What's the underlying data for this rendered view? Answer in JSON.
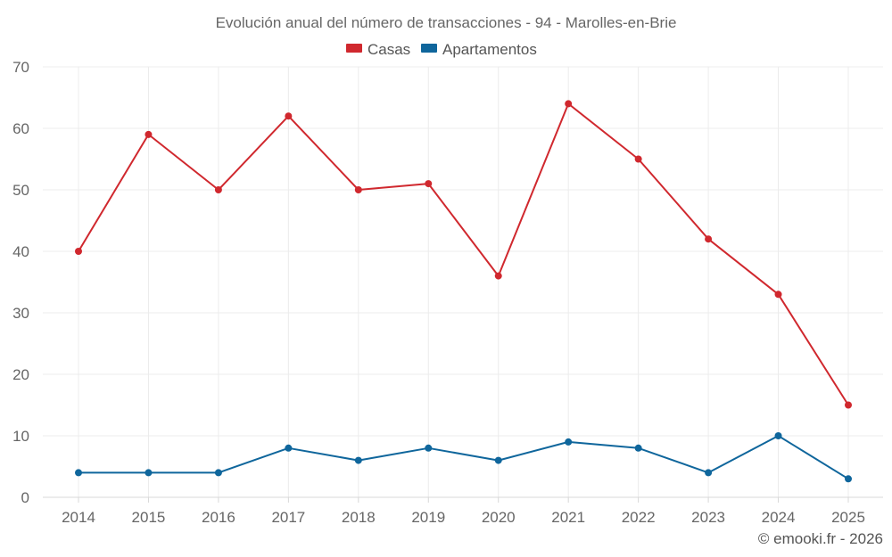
{
  "chart_data": {
    "type": "line",
    "title": "Evolución anual del número de transacciones - 94 - Marolles-en-Brie",
    "categories": [
      "2014",
      "2015",
      "2016",
      "2017",
      "2018",
      "2019",
      "2020",
      "2021",
      "2022",
      "2023",
      "2024",
      "2025"
    ],
    "series": [
      {
        "name": "Casas",
        "color": "#d0282e",
        "values": [
          40,
          59,
          50,
          62,
          50,
          51,
          36,
          64,
          55,
          42,
          33,
          15
        ]
      },
      {
        "name": "Apartamentos",
        "color": "#0f669c",
        "values": [
          4,
          4,
          4,
          8,
          6,
          8,
          6,
          9,
          8,
          4,
          10,
          3
        ]
      }
    ],
    "xlabel": "",
    "ylabel": "",
    "ylim": [
      0,
      70
    ],
    "yticks": [
      "0",
      "10",
      "20",
      "30",
      "40",
      "50",
      "60",
      "70"
    ],
    "grid": true,
    "legend_position": "top-center"
  },
  "credit": "© emooki.fr - 2026"
}
